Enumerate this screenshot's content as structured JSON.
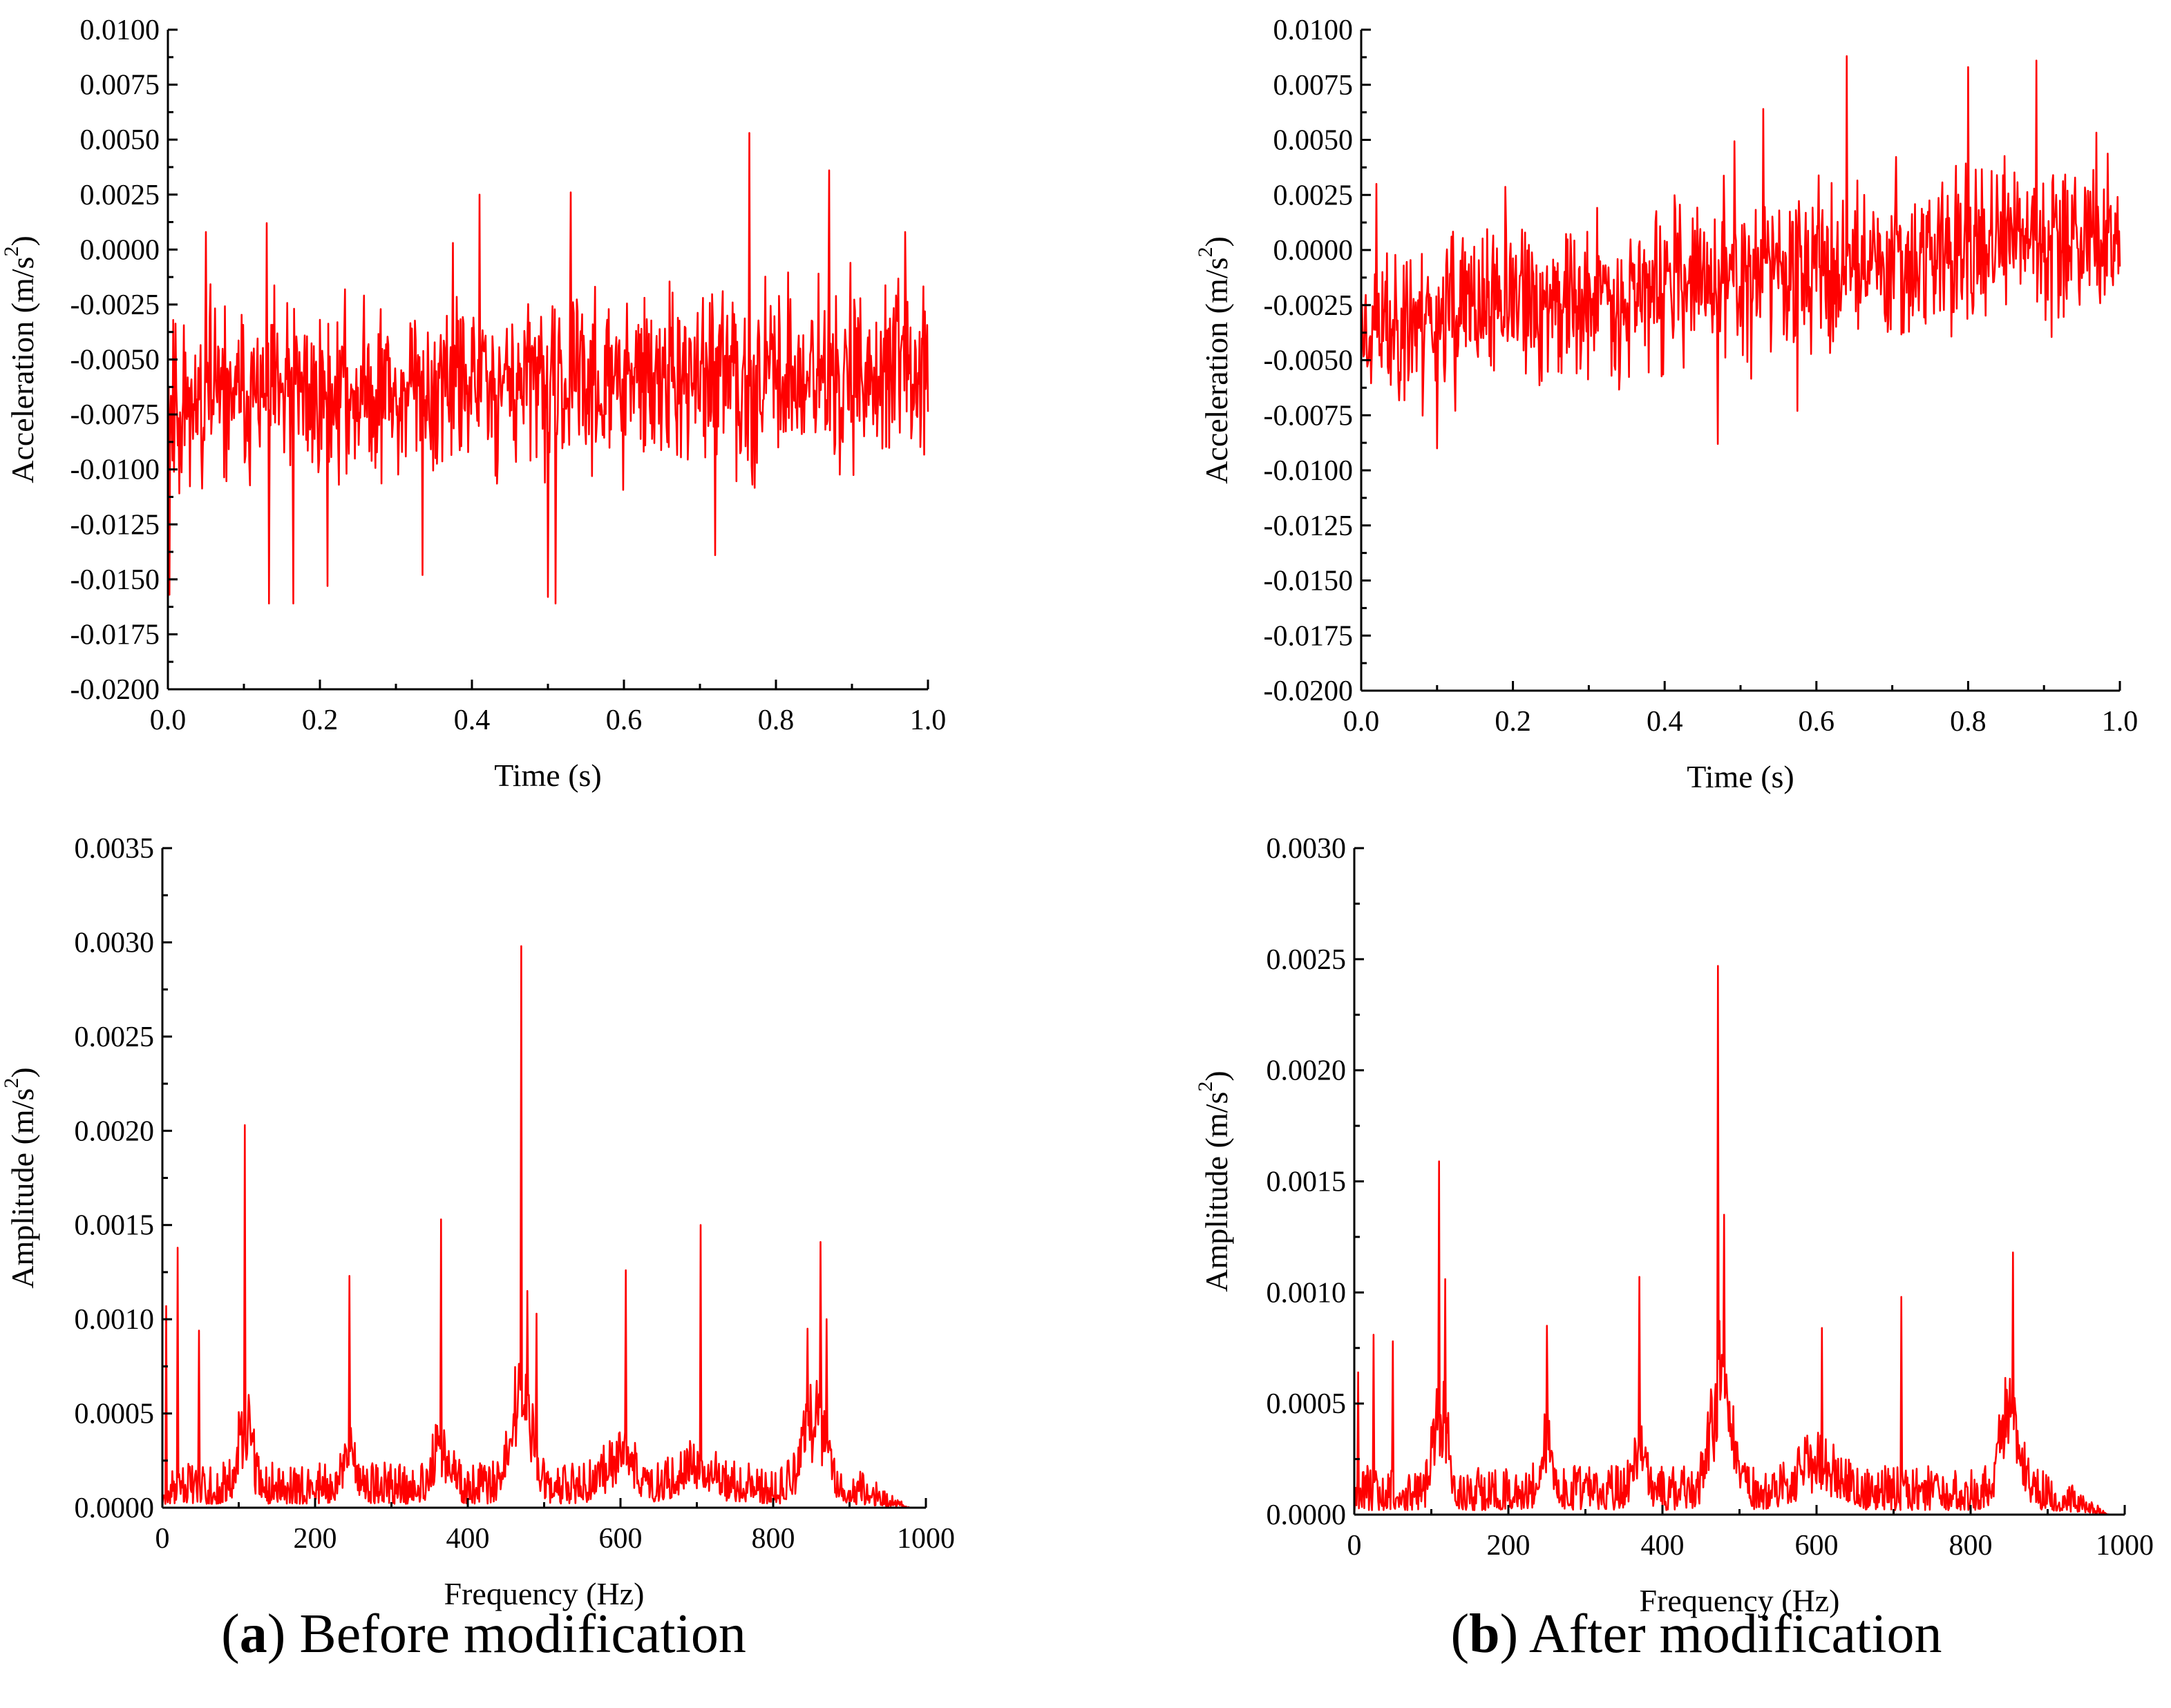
{
  "colors": {
    "trace": "#ff0000",
    "axis": "#000000"
  },
  "captions": {
    "a": {
      "letter": "a",
      "text": " Before modification"
    },
    "b": {
      "letter": "b",
      "text": " After modification"
    }
  },
  "chart_data": [
    {
      "id": "a-time",
      "panel": "a",
      "type": "line",
      "title": "",
      "xlabel": "Time (s)",
      "ylabel_main": "Acceleration (m/s",
      "ylabel_sup": "2",
      "ylabel_end": ")",
      "xlim": [
        0,
        1
      ],
      "ylim": [
        -0.02,
        0.01
      ],
      "x_ticks": [
        0,
        0.2,
        0.4,
        0.6,
        0.8,
        1.0
      ],
      "x_tick_labels": [
        "0.0",
        "0.2",
        "0.4",
        "0.6",
        "0.8",
        "1.0"
      ],
      "y_ticks": [
        -0.02,
        -0.0175,
        -0.015,
        -0.0125,
        -0.01,
        -0.0075,
        -0.005,
        -0.0025,
        0,
        0.0025,
        0.005,
        0.0075,
        0.01
      ],
      "y_tick_labels": [
        "-0.0200",
        "-0.0175",
        "-0.0150",
        "-0.0125",
        "-0.0100",
        "-0.0075",
        "-0.0050",
        "-0.0025",
        "0.0000",
        "0.0025",
        "0.0050",
        "0.0075",
        "0.0100"
      ],
      "generator": {
        "kind": "time",
        "n": 1000,
        "baseline": -0.0068,
        "slope": 0.0012,
        "noise_amp": 0.0034,
        "seed": 11
      },
      "series": [
        {
          "name": "Acceleration",
          "peaks": [
            [
              0.002,
              -0.0157
            ],
            [
              0.05,
              0.0008
            ],
            [
              0.13,
              0.0012
            ],
            [
              0.133,
              -0.0161
            ],
            [
              0.165,
              -0.0161
            ],
            [
              0.21,
              -0.0153
            ],
            [
              0.335,
              -0.0148
            ],
            [
              0.375,
              0.0003
            ],
            [
              0.41,
              0.0025
            ],
            [
              0.5,
              -0.0158
            ],
            [
              0.51,
              -0.0161
            ],
            [
              0.53,
              0.0026
            ],
            [
              0.72,
              -0.0139
            ],
            [
              0.765,
              0.0053
            ],
            [
              0.87,
              0.0036
            ],
            [
              0.97,
              0.0008
            ]
          ]
        }
      ]
    },
    {
      "id": "b-time",
      "panel": "b",
      "type": "line",
      "title": "",
      "xlabel": "Time (s)",
      "ylabel_main": "Acceleration (m/s",
      "ylabel_sup": "2",
      "ylabel_end": ")",
      "xlim": [
        0,
        1
      ],
      "ylim": [
        -0.02,
        0.01
      ],
      "x_ticks": [
        0,
        0.2,
        0.4,
        0.6,
        0.8,
        1.0
      ],
      "x_tick_labels": [
        "0.0",
        "0.2",
        "0.4",
        "0.6",
        "0.8",
        "1.0"
      ],
      "y_ticks": [
        -0.02,
        -0.0175,
        -0.015,
        -0.0125,
        -0.01,
        -0.0075,
        -0.005,
        -0.0025,
        0,
        0.0025,
        0.005,
        0.0075,
        0.01
      ],
      "y_tick_labels": [
        "-0.0200",
        "-0.0175",
        "-0.0150",
        "-0.0125",
        "-0.0100",
        "-0.0075",
        "-0.0050",
        "-0.0025",
        "0.0000",
        "0.0025",
        "0.0050",
        "0.0075",
        "0.0100"
      ],
      "generator": {
        "kind": "time",
        "n": 1000,
        "baseline": -0.0035,
        "slope": 0.0045,
        "noise_amp": 0.0032,
        "seed": 23
      },
      "series": [
        {
          "name": "Acceleration",
          "peaks": [
            [
              0.02,
              0.003
            ],
            [
              0.1,
              -0.009
            ],
            [
              0.47,
              -0.0088
            ],
            [
              0.53,
              0.0064
            ],
            [
              0.575,
              -0.0073
            ],
            [
              0.64,
              0.0088
            ],
            [
              0.8,
              0.0083
            ],
            [
              0.89,
              0.0086
            ]
          ]
        }
      ]
    },
    {
      "id": "a-spectrum",
      "panel": "a",
      "type": "line",
      "title": "",
      "xlabel": "Frequency (Hz)",
      "ylabel_main": "Amplitude (m/s",
      "ylabel_sup": "2",
      "ylabel_end": ")",
      "xlim": [
        0,
        1000
      ],
      "ylim": [
        0,
        0.0035
      ],
      "x_ticks": [
        0,
        200,
        400,
        600,
        800,
        1000
      ],
      "x_tick_labels": [
        "0",
        "200",
        "400",
        "600",
        "800",
        "1000"
      ],
      "y_ticks": [
        0,
        0.0005,
        0.001,
        0.0015,
        0.002,
        0.0025,
        0.003,
        0.0035
      ],
      "y_tick_labels": [
        "0.0000",
        "0.0005",
        "0.0010",
        "0.0015",
        "0.0020",
        "0.0025",
        "0.0030",
        "0.0035"
      ],
      "generator": {
        "kind": "spectrum",
        "n": 1000,
        "noise_amp": 0.00022,
        "cutoff": 900,
        "seed": 37
      },
      "series": [
        {
          "name": "Amplitude",
          "peaks": [
            [
              5,
              0.00107
            ],
            [
              20,
              0.00138
            ],
            [
              48,
              0.00094
            ],
            [
              108,
              0.00203
            ],
            [
              245,
              0.00123
            ],
            [
              365,
              0.00153
            ],
            [
              470,
              0.00298
            ],
            [
              478,
              0.00115
            ],
            [
              490,
              0.00103
            ],
            [
              607,
              0.00126
            ],
            [
              705,
              0.0015
            ],
            [
              845,
              0.00095
            ],
            [
              862,
              0.00141
            ],
            [
              870,
              0.001
            ]
          ],
          "bumps": [
            [
              108,
              12,
              0.0004
            ],
            [
              245,
              10,
              0.00025
            ],
            [
              365,
              15,
              0.00025
            ],
            [
              470,
              18,
              0.00055
            ],
            [
              600,
              30,
              0.00018
            ],
            [
              700,
              30,
              0.00012
            ],
            [
              855,
              20,
              0.00045
            ]
          ]
        }
      ]
    },
    {
      "id": "b-spectrum",
      "panel": "b",
      "type": "line",
      "title": "",
      "xlabel": "Frequency (Hz)",
      "ylabel_main": "Amplitude (m/s",
      "ylabel_sup": "2",
      "ylabel_end": ")",
      "xlim": [
        0,
        1000
      ],
      "ylim": [
        0,
        0.003
      ],
      "x_ticks": [
        0,
        200,
        400,
        600,
        800,
        1000
      ],
      "x_tick_labels": [
        "0",
        "200",
        "400",
        "600",
        "800",
        "1000"
      ],
      "y_ticks": [
        0,
        0.0005,
        0.001,
        0.0015,
        0.002,
        0.0025,
        0.003
      ],
      "y_tick_labels": [
        "0.0000",
        "0.0005",
        "0.0010",
        "0.0015",
        "0.0020",
        "0.0025",
        "0.0030"
      ],
      "generator": {
        "kind": "spectrum",
        "n": 1000,
        "noise_amp": 0.0002,
        "cutoff": 900,
        "seed": 51
      },
      "series": [
        {
          "name": "Amplitude",
          "peaks": [
            [
              5,
              0.00064
            ],
            [
              25,
              0.00081
            ],
            [
              50,
              0.00078
            ],
            [
              110,
              0.00159
            ],
            [
              118,
              0.00106
            ],
            [
              250,
              0.00085
            ],
            [
              370,
              0.00107
            ],
            [
              472,
              0.00247
            ],
            [
              480,
              0.00135
            ],
            [
              607,
              0.00084
            ],
            [
              710,
              0.00098
            ],
            [
              855,
              0.00118
            ]
          ],
          "bumps": [
            [
              112,
              12,
              0.0004
            ],
            [
              250,
              12,
              0.00022
            ],
            [
              370,
              12,
              0.0002
            ],
            [
              475,
              18,
              0.00055
            ],
            [
              600,
              35,
              0.00015
            ],
            [
              850,
              18,
              0.0004
            ]
          ]
        }
      ]
    }
  ]
}
